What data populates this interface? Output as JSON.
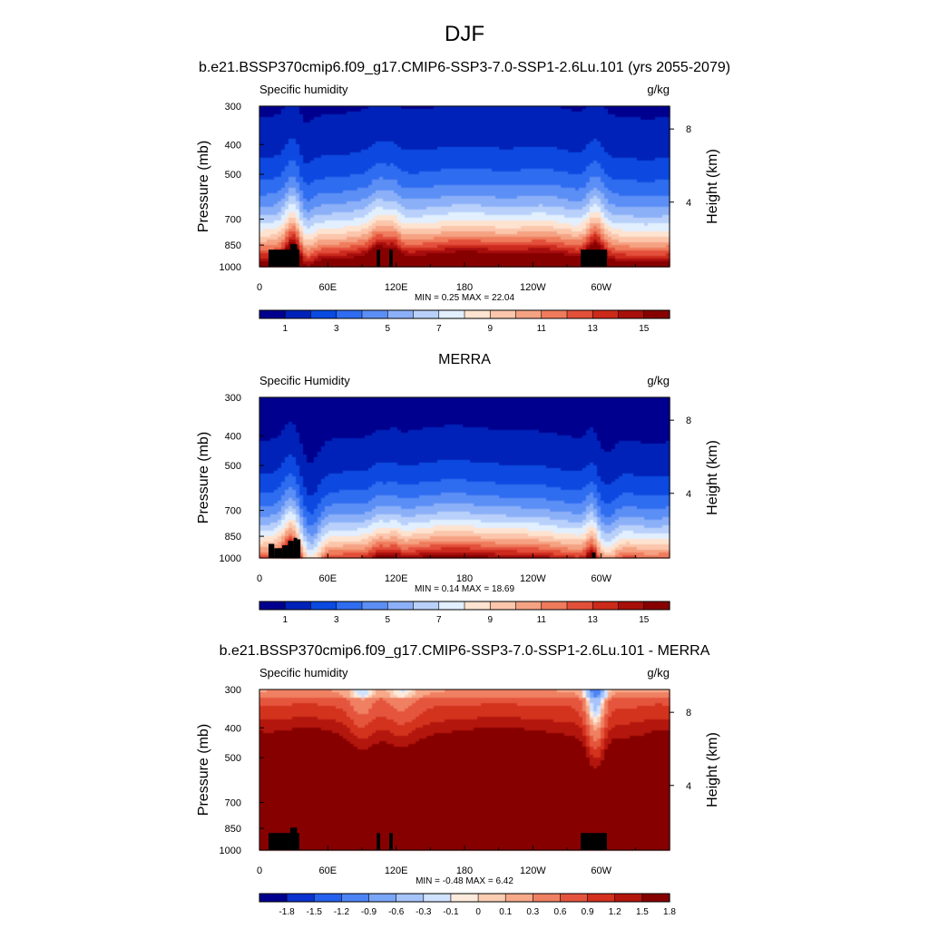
{
  "page_title": "DJF",
  "colors": {
    "abs_levels": [
      "#00008f",
      "#0022b8",
      "#0a4ae0",
      "#2f6cf0",
      "#5c8ff5",
      "#8cb0f8",
      "#b9d1fa",
      "#e2efff",
      "#fde3d0",
      "#fbc6ab",
      "#f5a283",
      "#ef7b5c",
      "#e3503a",
      "#cc2a1a",
      "#a80f0a",
      "#870000"
    ],
    "diff_levels": [
      "#00008f",
      "#0a32d0",
      "#2560ee",
      "#4d84f5",
      "#7aa6f8",
      "#a6c4fa",
      "#d0e2ff",
      "#fcebdc",
      "#fbcdb2",
      "#f7a98a",
      "#f08062",
      "#e5553e",
      "#d3301d",
      "#b3150c",
      "#870000"
    ],
    "topography": "#000000"
  },
  "panels": [
    {
      "id": "model",
      "title": "b.e21.BSSP370cmip6.f09_g17.CMIP6-SSP3-7.0-SSP1-2.6Lu.101 (yrs 2055-2079)",
      "left_label": "Specific humidity",
      "units": "g/kg",
      "stats_text": "MIN =   0.25  MAX =  22.04",
      "colorbar_labels": [
        "1",
        "3",
        "5",
        "7",
        "9",
        "11",
        "13",
        "15"
      ]
    },
    {
      "id": "obs",
      "title": "MERRA",
      "left_label": "Specific Humidity",
      "units": "g/kg",
      "stats_text": "MIN =   0.14  MAX =  18.69",
      "colorbar_labels": [
        "1",
        "3",
        "5",
        "7",
        "9",
        "11",
        "13",
        "15"
      ]
    },
    {
      "id": "diff",
      "title": "b.e21.BSSP370cmip6.f09_g17.CMIP6-SSP3-7.0-SSP1-2.6Lu.101 - MERRA",
      "left_label": "Specific humidity",
      "units": "g/kg",
      "stats_text": "MIN =  -0.48  MAX =   6.42",
      "colorbar_labels": [
        "-1.8",
        "-1.5",
        "-1.2",
        "-0.9",
        "-0.6",
        "-0.3",
        "-0.1",
        "0",
        "0.1",
        "0.3",
        "0.6",
        "0.9",
        "1.2",
        "1.5",
        "1.8"
      ]
    }
  ],
  "chart_data": {
    "type": "heatmap",
    "x_ticks": [
      "0",
      "60E",
      "120E",
      "180",
      "120W",
      "60W"
    ],
    "x_tick_values": [
      0,
      60,
      120,
      180,
      240,
      300
    ],
    "xlim": [
      0,
      360
    ],
    "y_ticks": [
      "300",
      "400",
      "500",
      "700",
      "850",
      "1000"
    ],
    "y_tick_values": [
      300,
      400,
      500,
      700,
      850,
      1000
    ],
    "ylim": [
      1000,
      300
    ],
    "y_scale": "log",
    "ylabel": "Pressure (mb)",
    "y2label": "Height (km)",
    "y2_ticks": [
      "8",
      "4"
    ],
    "y2_tick_pressures": [
      356,
      616
    ]
  }
}
